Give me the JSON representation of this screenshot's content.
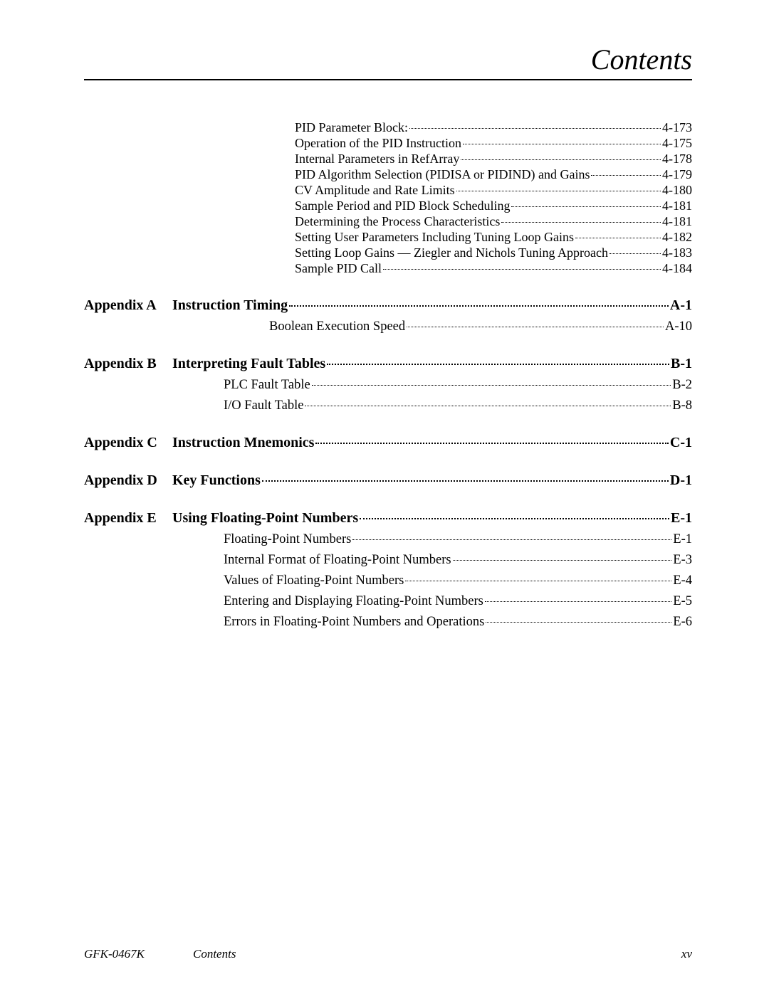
{
  "header": {
    "title": "Contents"
  },
  "pre_items": [
    {
      "text": "PID Parameter Block:",
      "page": "4-173"
    },
    {
      "text": "Operation of the PID Instruction",
      "page": "4-175"
    },
    {
      "text": "Internal Parameters in RefArray",
      "page": "4-178"
    },
    {
      "text": "PID Algorithm Selection (PIDISA or PIDIND) and Gains",
      "page": "4-179"
    },
    {
      "text": "CV Amplitude and Rate Limits",
      "page": "4-180"
    },
    {
      "text": "Sample Period and PID Block Scheduling",
      "page": "4-181"
    },
    {
      "text": "Determining the Process Characteristics",
      "page": "4-181"
    },
    {
      "text": "Setting User Parameters Including Tuning Loop Gains",
      "page": "4-182"
    },
    {
      "text": "Setting Loop Gains — Ziegler and Nichols Tuning Approach",
      "page": "4-183"
    },
    {
      "text": "Sample PID Call",
      "page": "4-184"
    }
  ],
  "sections": [
    {
      "label": "Appendix A",
      "title": "Instruction Timing",
      "page": "A-1",
      "subs": [
        {
          "indent": 3,
          "text": "Boolean Execution Speed",
          "page": "A-10"
        }
      ]
    },
    {
      "label": "Appendix B",
      "title": "Interpreting Fault Tables",
      "page": "B-1",
      "subs": [
        {
          "indent": 1,
          "text": "PLC Fault Table",
          "page": "B-2"
        },
        {
          "indent": 1,
          "text": "I/O Fault Table",
          "page": "B-8"
        }
      ]
    },
    {
      "label": "Appendix C",
      "title": "Instruction Mnemonics",
      "page": "C-1",
      "subs": []
    },
    {
      "label": "Appendix D",
      "title": "Key Functions",
      "page": "D-1",
      "subs": []
    },
    {
      "label": "Appendix E",
      "title": "Using Floating-Point Numbers",
      "page": "E-1",
      "subs": [
        {
          "indent": 1,
          "text": "Floating-Point Numbers",
          "page": "E-1"
        },
        {
          "indent": 1,
          "text": "Internal Format of Floating-Point Numbers",
          "page": "E-3"
        },
        {
          "indent": 1,
          "text": "Values of Floating-Point Numbers",
          "page": "E-4"
        },
        {
          "indent": 1,
          "text": "Entering and Displaying Floating-Point Numbers",
          "page": "E-5"
        },
        {
          "indent": 1,
          "text": "Errors in Floating-Point Numbers and Operations",
          "page": "E-6"
        }
      ]
    }
  ],
  "footer": {
    "doc_id": "GFK-0467K",
    "section": "Contents",
    "page_num": "xv"
  }
}
